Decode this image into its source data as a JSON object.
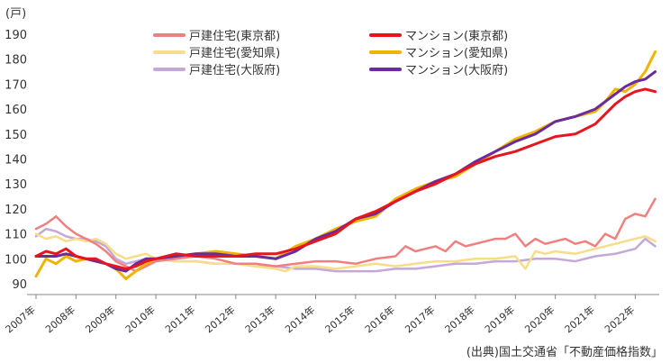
{
  "unit_label": "(戸)",
  "source_label": "(出典)国土交通省「不動産価格指数」",
  "chart_data": {
    "type": "line",
    "title": "",
    "xlabel": "",
    "ylabel": "",
    "ylim": [
      90,
      190
    ],
    "yticks": [
      90,
      100,
      110,
      120,
      130,
      140,
      150,
      160,
      170,
      180,
      190
    ],
    "xlim": [
      2007,
      2022.6
    ],
    "xticks": [
      "2007年",
      "2008年",
      "2009年",
      "2010年",
      "2011年",
      "2012年",
      "2013年",
      "2014年",
      "2015年",
      "2016年",
      "2017年",
      "2018年",
      "2019年",
      "2020年",
      "2021年",
      "2022年"
    ],
    "grid": false,
    "legend_position": "top",
    "series": [
      {
        "name": "戸建住宅(東京都)",
        "color": "#f08080",
        "width": 2.5,
        "points": [
          [
            2007.0,
            112
          ],
          [
            2007.25,
            114
          ],
          [
            2007.5,
            117
          ],
          [
            2007.75,
            113
          ],
          [
            2008.0,
            110
          ],
          [
            2008.25,
            108
          ],
          [
            2008.5,
            106
          ],
          [
            2008.75,
            103
          ],
          [
            2009.0,
            99
          ],
          [
            2009.25,
            97
          ],
          [
            2009.5,
            95
          ],
          [
            2009.75,
            97
          ],
          [
            2010.0,
            99
          ],
          [
            2010.5,
            100
          ],
          [
            2011.0,
            101
          ],
          [
            2011.5,
            100
          ],
          [
            2012.0,
            98
          ],
          [
            2012.5,
            98
          ],
          [
            2013.0,
            97
          ],
          [
            2013.5,
            98
          ],
          [
            2014.0,
            99
          ],
          [
            2014.5,
            99
          ],
          [
            2015.0,
            98
          ],
          [
            2015.5,
            100
          ],
          [
            2016.0,
            101
          ],
          [
            2016.25,
            105
          ],
          [
            2016.5,
            103
          ],
          [
            2016.75,
            104
          ],
          [
            2017.0,
            105
          ],
          [
            2017.25,
            103
          ],
          [
            2017.5,
            107
          ],
          [
            2017.75,
            105
          ],
          [
            2018.0,
            106
          ],
          [
            2018.25,
            107
          ],
          [
            2018.5,
            108
          ],
          [
            2018.75,
            108
          ],
          [
            2019.0,
            110
          ],
          [
            2019.25,
            105
          ],
          [
            2019.5,
            108
          ],
          [
            2019.75,
            106
          ],
          [
            2020.0,
            107
          ],
          [
            2020.25,
            108
          ],
          [
            2020.5,
            106
          ],
          [
            2020.75,
            107
          ],
          [
            2021.0,
            105
          ],
          [
            2021.25,
            110
          ],
          [
            2021.5,
            108
          ],
          [
            2021.75,
            116
          ],
          [
            2022.0,
            118
          ],
          [
            2022.25,
            117
          ],
          [
            2022.5,
            124
          ]
        ]
      },
      {
        "name": "マンション(東京都)",
        "color": "#e8141e",
        "width": 3,
        "points": [
          [
            2007.0,
            101
          ],
          [
            2007.25,
            103
          ],
          [
            2007.5,
            102
          ],
          [
            2007.75,
            104
          ],
          [
            2008.0,
            101
          ],
          [
            2008.25,
            100
          ],
          [
            2008.5,
            100
          ],
          [
            2008.75,
            98
          ],
          [
            2009.0,
            97
          ],
          [
            2009.25,
            96
          ],
          [
            2009.5,
            97
          ],
          [
            2009.75,
            99
          ],
          [
            2010.0,
            100
          ],
          [
            2010.5,
            102
          ],
          [
            2011.0,
            101
          ],
          [
            2011.5,
            101
          ],
          [
            2012.0,
            101
          ],
          [
            2012.5,
            102
          ],
          [
            2013.0,
            102
          ],
          [
            2013.5,
            104
          ],
          [
            2014.0,
            107
          ],
          [
            2014.5,
            110
          ],
          [
            2015.0,
            116
          ],
          [
            2015.5,
            119
          ],
          [
            2016.0,
            123
          ],
          [
            2016.5,
            127
          ],
          [
            2017.0,
            130
          ],
          [
            2017.5,
            134
          ],
          [
            2018.0,
            138
          ],
          [
            2018.5,
            141
          ],
          [
            2019.0,
            143
          ],
          [
            2019.5,
            146
          ],
          [
            2020.0,
            149
          ],
          [
            2020.5,
            150
          ],
          [
            2021.0,
            154
          ],
          [
            2021.5,
            162
          ],
          [
            2021.75,
            165
          ],
          [
            2022.0,
            167
          ],
          [
            2022.25,
            168
          ],
          [
            2022.5,
            167
          ]
        ]
      },
      {
        "name": "戸建住宅(愛知県)",
        "color": "#f7dd88",
        "width": 2.5,
        "points": [
          [
            2007.0,
            110
          ],
          [
            2007.25,
            108
          ],
          [
            2007.5,
            109
          ],
          [
            2007.75,
            107
          ],
          [
            2008.0,
            108
          ],
          [
            2008.25,
            107
          ],
          [
            2008.5,
            108
          ],
          [
            2008.75,
            106
          ],
          [
            2009.0,
            102
          ],
          [
            2009.25,
            100
          ],
          [
            2009.5,
            101
          ],
          [
            2009.75,
            102
          ],
          [
            2010.0,
            100
          ],
          [
            2010.5,
            99
          ],
          [
            2011.0,
            99
          ],
          [
            2011.5,
            98
          ],
          [
            2012.0,
            98
          ],
          [
            2012.5,
            97
          ],
          [
            2013.0,
            96
          ],
          [
            2013.25,
            95
          ],
          [
            2013.5,
            97
          ],
          [
            2014.0,
            97
          ],
          [
            2014.5,
            96
          ],
          [
            2015.0,
            97
          ],
          [
            2015.5,
            98
          ],
          [
            2016.0,
            97
          ],
          [
            2016.5,
            98
          ],
          [
            2017.0,
            99
          ],
          [
            2017.5,
            99
          ],
          [
            2018.0,
            100
          ],
          [
            2018.5,
            100
          ],
          [
            2019.0,
            101
          ],
          [
            2019.25,
            96
          ],
          [
            2019.5,
            103
          ],
          [
            2019.75,
            102
          ],
          [
            2020.0,
            103
          ],
          [
            2020.5,
            102
          ],
          [
            2021.0,
            104
          ],
          [
            2021.5,
            106
          ],
          [
            2022.0,
            108
          ],
          [
            2022.25,
            109
          ],
          [
            2022.5,
            107
          ]
        ]
      },
      {
        "name": "マンション(愛知県)",
        "color": "#f0b400",
        "width": 3,
        "points": [
          [
            2007.0,
            93
          ],
          [
            2007.25,
            100
          ],
          [
            2007.5,
            98
          ],
          [
            2007.75,
            101
          ],
          [
            2008.0,
            99
          ],
          [
            2008.25,
            100
          ],
          [
            2008.5,
            99
          ],
          [
            2008.75,
            98
          ],
          [
            2009.0,
            96
          ],
          [
            2009.25,
            92
          ],
          [
            2009.5,
            95
          ],
          [
            2009.75,
            98
          ],
          [
            2010.0,
            100
          ],
          [
            2010.5,
            101
          ],
          [
            2011.0,
            102
          ],
          [
            2011.5,
            103
          ],
          [
            2012.0,
            102
          ],
          [
            2012.5,
            101
          ],
          [
            2013.0,
            100
          ],
          [
            2013.5,
            105
          ],
          [
            2014.0,
            108
          ],
          [
            2014.5,
            112
          ],
          [
            2015.0,
            115
          ],
          [
            2015.5,
            117
          ],
          [
            2016.0,
            124
          ],
          [
            2016.5,
            128
          ],
          [
            2017.0,
            131
          ],
          [
            2017.5,
            133
          ],
          [
            2018.0,
            138
          ],
          [
            2018.5,
            143
          ],
          [
            2019.0,
            148
          ],
          [
            2019.5,
            151
          ],
          [
            2020.0,
            155
          ],
          [
            2020.5,
            157
          ],
          [
            2021.0,
            159
          ],
          [
            2021.25,
            163
          ],
          [
            2021.5,
            168
          ],
          [
            2021.75,
            167
          ],
          [
            2022.0,
            170
          ],
          [
            2022.25,
            175
          ],
          [
            2022.5,
            183
          ]
        ]
      },
      {
        "name": "戸建住宅(大阪府)",
        "color": "#c4a8d8",
        "width": 2.5,
        "points": [
          [
            2007.0,
            109
          ],
          [
            2007.25,
            112
          ],
          [
            2007.5,
            111
          ],
          [
            2007.75,
            109
          ],
          [
            2008.0,
            108
          ],
          [
            2008.25,
            108
          ],
          [
            2008.5,
            107
          ],
          [
            2008.75,
            105
          ],
          [
            2009.0,
            100
          ],
          [
            2009.25,
            98
          ],
          [
            2009.5,
            99
          ],
          [
            2009.75,
            100
          ],
          [
            2010.0,
            100
          ],
          [
            2010.5,
            99
          ],
          [
            2011.0,
            99
          ],
          [
            2011.5,
            98
          ],
          [
            2012.0,
            98
          ],
          [
            2012.5,
            97
          ],
          [
            2013.0,
            97
          ],
          [
            2013.5,
            96
          ],
          [
            2014.0,
            96
          ],
          [
            2014.5,
            95
          ],
          [
            2015.0,
            95
          ],
          [
            2015.5,
            95
          ],
          [
            2016.0,
            96
          ],
          [
            2016.5,
            96
          ],
          [
            2017.0,
            97
          ],
          [
            2017.5,
            98
          ],
          [
            2018.0,
            98
          ],
          [
            2018.5,
            99
          ],
          [
            2019.0,
            99
          ],
          [
            2019.5,
            100
          ],
          [
            2020.0,
            100
          ],
          [
            2020.5,
            99
          ],
          [
            2021.0,
            101
          ],
          [
            2021.5,
            102
          ],
          [
            2022.0,
            104
          ],
          [
            2022.25,
            108
          ],
          [
            2022.5,
            105
          ]
        ]
      },
      {
        "name": "マンション(大阪府)",
        "color": "#6a2b9c",
        "width": 3,
        "points": [
          [
            2007.0,
            101
          ],
          [
            2007.25,
            101
          ],
          [
            2007.5,
            101
          ],
          [
            2007.75,
            102
          ],
          [
            2008.0,
            101
          ],
          [
            2008.25,
            100
          ],
          [
            2008.5,
            99
          ],
          [
            2008.75,
            98
          ],
          [
            2009.0,
            96
          ],
          [
            2009.25,
            95
          ],
          [
            2009.5,
            98
          ],
          [
            2009.75,
            100
          ],
          [
            2010.0,
            100
          ],
          [
            2010.5,
            101
          ],
          [
            2011.0,
            102
          ],
          [
            2011.5,
            102
          ],
          [
            2012.0,
            101
          ],
          [
            2012.5,
            101
          ],
          [
            2013.0,
            100
          ],
          [
            2013.5,
            103
          ],
          [
            2014.0,
            108
          ],
          [
            2014.5,
            111
          ],
          [
            2015.0,
            116
          ],
          [
            2015.5,
            118
          ],
          [
            2016.0,
            123
          ],
          [
            2016.5,
            127
          ],
          [
            2017.0,
            131
          ],
          [
            2017.5,
            134
          ],
          [
            2018.0,
            139
          ],
          [
            2018.5,
            143
          ],
          [
            2019.0,
            147
          ],
          [
            2019.5,
            150
          ],
          [
            2020.0,
            155
          ],
          [
            2020.5,
            157
          ],
          [
            2021.0,
            160
          ],
          [
            2021.5,
            166
          ],
          [
            2021.75,
            169
          ],
          [
            2022.0,
            171
          ],
          [
            2022.25,
            172
          ],
          [
            2022.5,
            175
          ]
        ]
      }
    ]
  }
}
